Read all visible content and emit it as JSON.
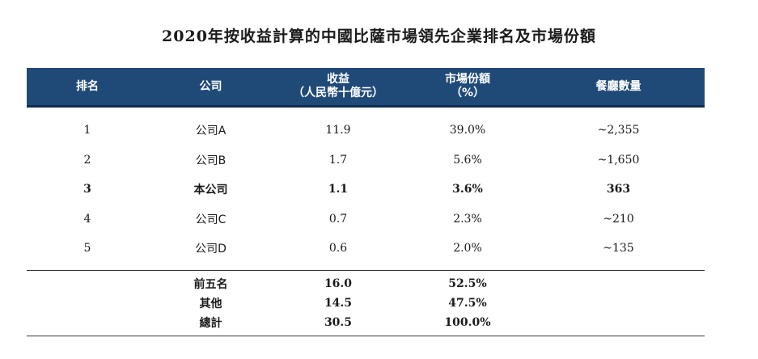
{
  "title": "2020年按收益計算的中國比薩市場領先企業排名及市場份額",
  "header": {
    "rank": "排名",
    "company": "公司",
    "revenue_line1": "收益",
    "revenue_line2": "（人民幣十億元）",
    "share_line1": "市場份額",
    "share_line2": "（%）",
    "count": "餐廳數量"
  },
  "rows": [
    {
      "rank": "1",
      "company": "公司A",
      "revenue": "11.9",
      "share": "39.0%",
      "count": "~2,355"
    },
    {
      "rank": "2",
      "company": "公司B",
      "revenue": "1.7",
      "share": "5.6%",
      "count": "~1,650"
    },
    {
      "rank": "3",
      "company": "本公司",
      "revenue": "1.1",
      "share": "3.6%",
      "count": "363"
    },
    {
      "rank": "4",
      "company": "公司C",
      "revenue": "0.7",
      "share": "2.3%",
      "count": "~210"
    },
    {
      "rank": "5",
      "company": "公司D",
      "revenue": "0.6",
      "share": "2.0%",
      "count": "~135"
    }
  ],
  "summary": [
    {
      "label": "前五名",
      "revenue": "16.0",
      "share": "52.5%"
    },
    {
      "label": "其他",
      "revenue": "14.5",
      "share": "47.5%"
    },
    {
      "label": "總計",
      "revenue": "30.5",
      "share": "100.0%"
    }
  ]
}
